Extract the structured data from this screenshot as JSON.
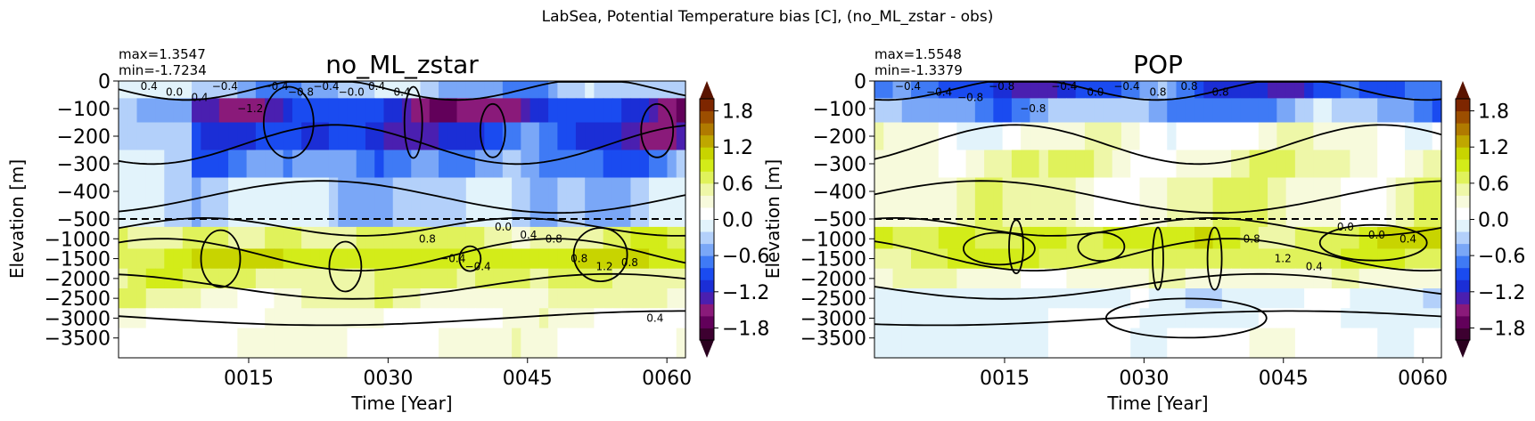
{
  "figure": {
    "suptitle": "LabSea, Potential Temperature bias [C], (no_ML_zstar - obs)"
  },
  "colors": {
    "dashed_line": "#000000",
    "contour": "#000000"
  },
  "colorbar": {
    "ticks": [
      "1.8",
      "1.2",
      "0.6",
      "0.0",
      "−0.6",
      "−1.2",
      "−1.8"
    ],
    "range": [
      -2.0,
      2.0
    ],
    "extend": "both"
  },
  "chart_data": [
    {
      "type": "heatmap",
      "title": "no_ML_zstar",
      "max_text": "max=1.3547",
      "min_text": "min=-1.7234",
      "xlabel": "Time [Year]",
      "ylabel": "Elevation [m]",
      "x_ticks": [
        "0015",
        "0030",
        "0045",
        "0060"
      ],
      "y_ticks_upper": [
        "0",
        "−100",
        "−200",
        "−300",
        "−400",
        "−500"
      ],
      "y_ticks_lower": [
        "−1000",
        "−1500",
        "−2000",
        "−2500",
        "−3000",
        "−3500"
      ],
      "contour_labels": [
        "0.4",
        "0.0",
        "0.4",
        "−0.4",
        "−1.2",
        "−0.4",
        "−0.8",
        "−0.4",
        "−0.0",
        "0.4",
        "0.4",
        "0.8",
        "−0.4",
        "−0.4",
        "0.0",
        "0.4",
        "0.8",
        "0.8",
        "1.2",
        "0.8",
        "0.4"
      ],
      "x_range": [
        1,
        62
      ],
      "dashed_at": -500,
      "levels_by_depth": [
        {
          "depth": -25,
          "bias": -0.4
        },
        {
          "depth": -100,
          "bias": -1.2
        },
        {
          "depth": -200,
          "bias": -1.0
        },
        {
          "depth": -300,
          "bias": -0.6
        },
        {
          "depth": -400,
          "bias": -0.3
        },
        {
          "depth": -1000,
          "bias": 0.6
        },
        {
          "depth": -1500,
          "bias": 0.9
        },
        {
          "depth": -2000,
          "bias": 0.6
        },
        {
          "depth": -2500,
          "bias": 0.4
        },
        {
          "depth": -3000,
          "bias": 0.2
        },
        {
          "depth": -3500,
          "bias": 0.2
        }
      ]
    },
    {
      "type": "heatmap",
      "title": "POP",
      "max_text": "max=1.5548",
      "min_text": "min=-1.3379",
      "xlabel": "Time [Year]",
      "ylabel": "Elevation [m]",
      "x_ticks": [
        "0015",
        "0030",
        "0045",
        "0060"
      ],
      "y_ticks_upper": [
        "0",
        "−100",
        "−200",
        "−300",
        "−400",
        "−500"
      ],
      "y_ticks_lower": [
        "−1000",
        "−1500",
        "−2000",
        "−2500",
        "−3000",
        "−3500"
      ],
      "contour_labels": [
        "−0.4",
        "−0.4",
        "−0.8",
        "−0.8",
        "−0.8",
        "−0.4",
        "0.0",
        "−0.4",
        "0.8",
        "0.8",
        "0.8",
        "0.8",
        "1.2",
        "0.4",
        "0.0",
        "0.0",
        "0.4"
      ],
      "x_range": [
        1,
        62
      ],
      "dashed_at": -500,
      "levels_by_depth": [
        {
          "depth": -25,
          "bias": -0.9
        },
        {
          "depth": -100,
          "bias": -0.5
        },
        {
          "depth": -200,
          "bias": 0.2
        },
        {
          "depth": -300,
          "bias": 0.4
        },
        {
          "depth": -400,
          "bias": 0.4
        },
        {
          "depth": -1000,
          "bias": 0.8
        },
        {
          "depth": -1500,
          "bias": 0.7
        },
        {
          "depth": -2000,
          "bias": 0.3
        },
        {
          "depth": -2500,
          "bias": -0.1
        },
        {
          "depth": -3000,
          "bias": 0.0
        },
        {
          "depth": -3500,
          "bias": 0.1
        }
      ]
    }
  ]
}
